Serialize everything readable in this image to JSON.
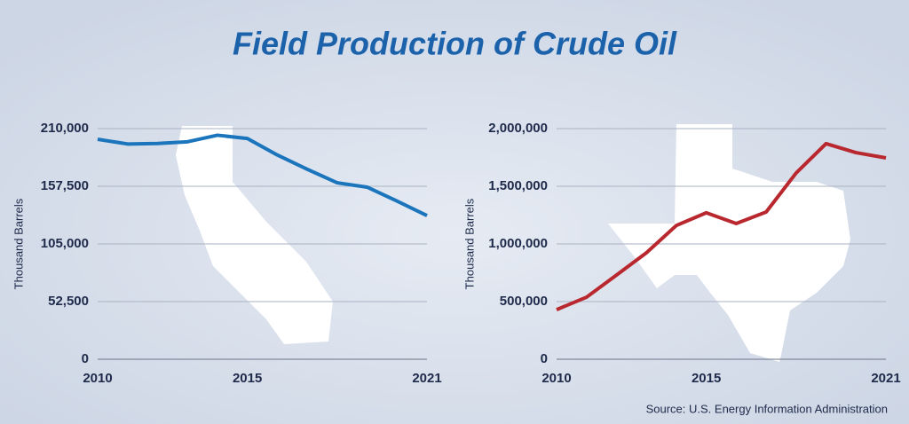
{
  "title": "Field Production of Crude Oil",
  "source": "Source:  U.S. Energy Information Administration",
  "chart_data": [
    {
      "type": "line",
      "ylabel": "Thousand Barrels",
      "color": "#1b75bc",
      "x": [
        2010,
        2011,
        2012,
        2013,
        2014,
        2015,
        2016,
        2017,
        2018,
        2019,
        2020,
        2021
      ],
      "values": [
        200300,
        196000,
        196500,
        198000,
        204000,
        201000,
        186000,
        173000,
        160700,
        156700,
        144000,
        130800
      ],
      "xlim": [
        2010,
        2021
      ],
      "xticks": [
        2010,
        2015,
        2021
      ],
      "ylim": [
        0,
        210000
      ],
      "yticks": [
        0,
        {
          "value": 52500,
          "label": "52,500"
        },
        {
          "value": 105000,
          "label": "105,000"
        },
        {
          "value": 157500,
          "label": "157,500"
        },
        {
          "value": 210000,
          "label": "210,000"
        }
      ],
      "grid": true
    },
    {
      "type": "line",
      "ylabel": "Thousand Barrels",
      "color": "#b8282e",
      "x": [
        2010,
        2011,
        2012,
        2013,
        2014,
        2015,
        2016,
        2017,
        2018,
        2019,
        2020,
        2021
      ],
      "values": [
        430000,
        538000,
        730000,
        923000,
        1160000,
        1270000,
        1177000,
        1277000,
        1615000,
        1870000,
        1792000,
        1746000
      ],
      "xlim": [
        2010,
        2021
      ],
      "xticks": [
        2010,
        2015,
        2021
      ],
      "ylim": [
        0,
        2000000
      ],
      "yticks": [
        0,
        {
          "value": 500000,
          "label": "500,000"
        },
        {
          "value": 1000000,
          "label": "1,000,000"
        },
        {
          "value": 1500000,
          "label": "1,500,000"
        },
        {
          "value": 2000000,
          "label": "2,000,000"
        }
      ],
      "grid": true
    }
  ]
}
